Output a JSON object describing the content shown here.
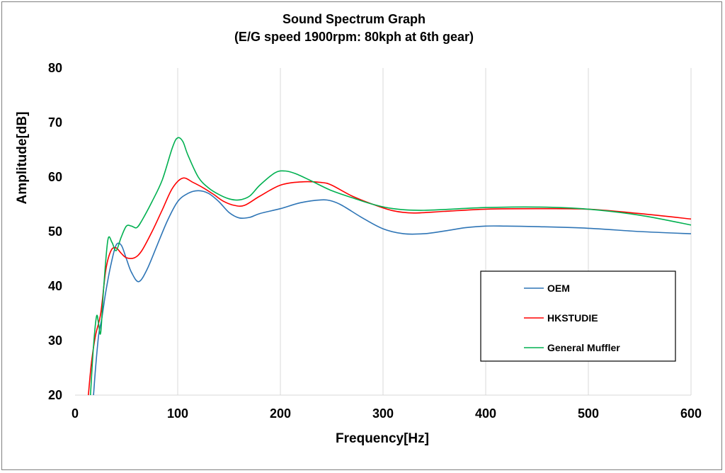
{
  "chart_data": {
    "type": "line",
    "title": "Sound Spectrum Graph",
    "subtitle": "(E/G speed 1900rpm: 80kph at 6th gear)",
    "xlabel": "Frequency[Hz]",
    "ylabel": "Amplitude[dB]",
    "xlim": [
      0,
      600
    ],
    "ylim": [
      20,
      80
    ],
    "xticks": [
      0,
      100,
      200,
      300,
      400,
      500,
      600
    ],
    "yticks": [
      20,
      30,
      40,
      50,
      60,
      70,
      80
    ],
    "grid": "vertical",
    "legend_position": "bottom-right",
    "series": [
      {
        "name": "OEM",
        "color": "#2e75b6",
        "points": [
          [
            18,
            20
          ],
          [
            20,
            25
          ],
          [
            23,
            31
          ],
          [
            26,
            34
          ],
          [
            30,
            39
          ],
          [
            35,
            44
          ],
          [
            40,
            47.5
          ],
          [
            45,
            47.5
          ],
          [
            50,
            45
          ],
          [
            55,
            42.5
          ],
          [
            62,
            40.8
          ],
          [
            70,
            43
          ],
          [
            80,
            47.5
          ],
          [
            90,
            52
          ],
          [
            100,
            55.5
          ],
          [
            110,
            57
          ],
          [
            120,
            57.5
          ],
          [
            130,
            57
          ],
          [
            140,
            55.5
          ],
          [
            150,
            53.5
          ],
          [
            160,
            52.5
          ],
          [
            170,
            52.6
          ],
          [
            180,
            53.3
          ],
          [
            200,
            54.2
          ],
          [
            220,
            55.3
          ],
          [
            240,
            55.8
          ],
          [
            250,
            55.6
          ],
          [
            260,
            54.8
          ],
          [
            280,
            52.5
          ],
          [
            300,
            50.5
          ],
          [
            320,
            49.6
          ],
          [
            340,
            49.6
          ],
          [
            360,
            50.1
          ],
          [
            380,
            50.7
          ],
          [
            400,
            51
          ],
          [
            420,
            51
          ],
          [
            450,
            50.9
          ],
          [
            500,
            50.6
          ],
          [
            550,
            50
          ],
          [
            600,
            49.6
          ]
        ]
      },
      {
        "name": "HKSTUDIE",
        "color": "#ff0000",
        "points": [
          [
            13,
            20
          ],
          [
            16,
            26
          ],
          [
            20,
            31
          ],
          [
            25,
            35
          ],
          [
            30,
            43
          ],
          [
            35,
            46.5
          ],
          [
            40,
            47
          ],
          [
            45,
            46
          ],
          [
            50,
            45.2
          ],
          [
            58,
            45.2
          ],
          [
            65,
            46.5
          ],
          [
            75,
            50
          ],
          [
            85,
            54
          ],
          [
            95,
            58
          ],
          [
            105,
            59.8
          ],
          [
            115,
            59
          ],
          [
            125,
            58
          ],
          [
            135,
            56.8
          ],
          [
            145,
            55.5
          ],
          [
            155,
            54.8
          ],
          [
            165,
            54.8
          ],
          [
            180,
            56.5
          ],
          [
            200,
            58.5
          ],
          [
            220,
            59.1
          ],
          [
            240,
            59
          ],
          [
            250,
            58.5
          ],
          [
            270,
            56.5
          ],
          [
            290,
            55
          ],
          [
            310,
            53.8
          ],
          [
            330,
            53.4
          ],
          [
            360,
            53.7
          ],
          [
            400,
            54.1
          ],
          [
            450,
            54.2
          ],
          [
            500,
            54.1
          ],
          [
            550,
            53.3
          ],
          [
            600,
            52.3
          ]
        ]
      },
      {
        "name": "General Muffler",
        "color": "#00b050",
        "points": [
          [
            15,
            20
          ],
          [
            18,
            29
          ],
          [
            21,
            34.5
          ],
          [
            23,
            33
          ],
          [
            25,
            31.5
          ],
          [
            28,
            40
          ],
          [
            32,
            48.5
          ],
          [
            36,
            48
          ],
          [
            40,
            46.5
          ],
          [
            45,
            49
          ],
          [
            50,
            51
          ],
          [
            55,
            51
          ],
          [
            60,
            50.7
          ],
          [
            65,
            52
          ],
          [
            75,
            55.5
          ],
          [
            85,
            59.5
          ],
          [
            95,
            65.5
          ],
          [
            100,
            67.2
          ],
          [
            105,
            66.5
          ],
          [
            110,
            64
          ],
          [
            120,
            60
          ],
          [
            130,
            58
          ],
          [
            140,
            56.8
          ],
          [
            150,
            56
          ],
          [
            160,
            55.8
          ],
          [
            170,
            56.5
          ],
          [
            180,
            58.5
          ],
          [
            195,
            60.8
          ],
          [
            205,
            61.1
          ],
          [
            215,
            60.6
          ],
          [
            230,
            59.3
          ],
          [
            250,
            57.5
          ],
          [
            270,
            56.2
          ],
          [
            290,
            55
          ],
          [
            310,
            54.2
          ],
          [
            340,
            53.9
          ],
          [
            400,
            54.4
          ],
          [
            450,
            54.5
          ],
          [
            500,
            54.1
          ],
          [
            550,
            53
          ],
          [
            600,
            51.2
          ]
        ]
      }
    ]
  }
}
